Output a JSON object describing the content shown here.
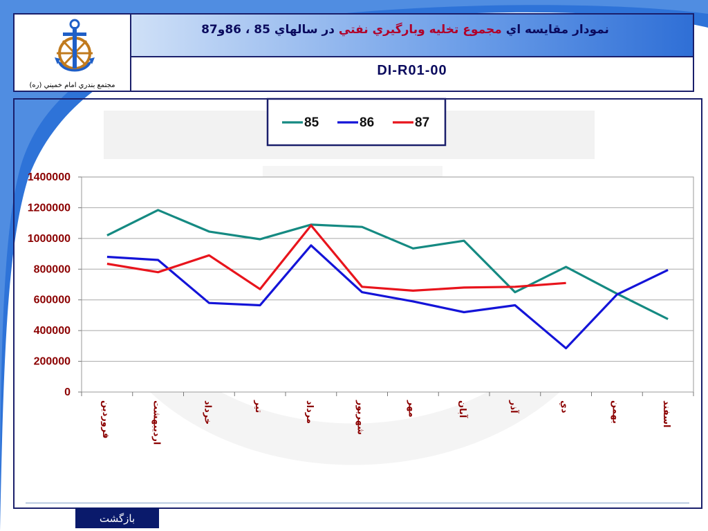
{
  "header": {
    "logo_caption": "مجتمع بندري امام خميني (ره)",
    "title_part1": "نمودار مقايسه اي",
    "title_part2": "مجموع تخليه وبارگيري نفتي",
    "title_part3": "در سالهاي 85 ، 86و87",
    "doc_code": "DI-R01-00"
  },
  "footer": {
    "back_label": "بازگشت"
  },
  "colors": {
    "frame": "#1a1f6b",
    "series_85": "#158a82",
    "series_86": "#1414d8",
    "series_87": "#e8141c",
    "axis_label": "#8b0000"
  },
  "icons": [
    "anchor-logo-icon"
  ],
  "chart_data": {
    "type": "line",
    "title": "",
    "xlabel": "",
    "ylabel": "",
    "ylim": [
      0,
      1400000
    ],
    "yticks": [
      "0",
      "200000",
      "400000",
      "600000",
      "800000",
      "1000000",
      "1200000",
      "1400000"
    ],
    "grid": true,
    "legend_position": "top-center",
    "categories": [
      "فروردين",
      "ارديبهشت",
      "خرداد",
      "تير",
      "مرداد",
      "شهريور",
      "مهر",
      "آبان",
      "آذر",
      "دي",
      "بهمن",
      "اسفند"
    ],
    "series": [
      {
        "name": "85",
        "color": "#158a82",
        "values": [
          1020000,
          1185000,
          1045000,
          995000,
          1090000,
          1075000,
          935000,
          985000,
          650000,
          815000,
          640000,
          475000
        ]
      },
      {
        "name": "86",
        "color": "#1414d8",
        "values": [
          880000,
          860000,
          580000,
          565000,
          955000,
          650000,
          590000,
          520000,
          565000,
          285000,
          635000,
          795000
        ]
      },
      {
        "name": "87",
        "color": "#e8141c",
        "values": [
          835000,
          780000,
          890000,
          670000,
          1085000,
          685000,
          660000,
          680000,
          685000,
          710000,
          null,
          null
        ]
      }
    ]
  }
}
